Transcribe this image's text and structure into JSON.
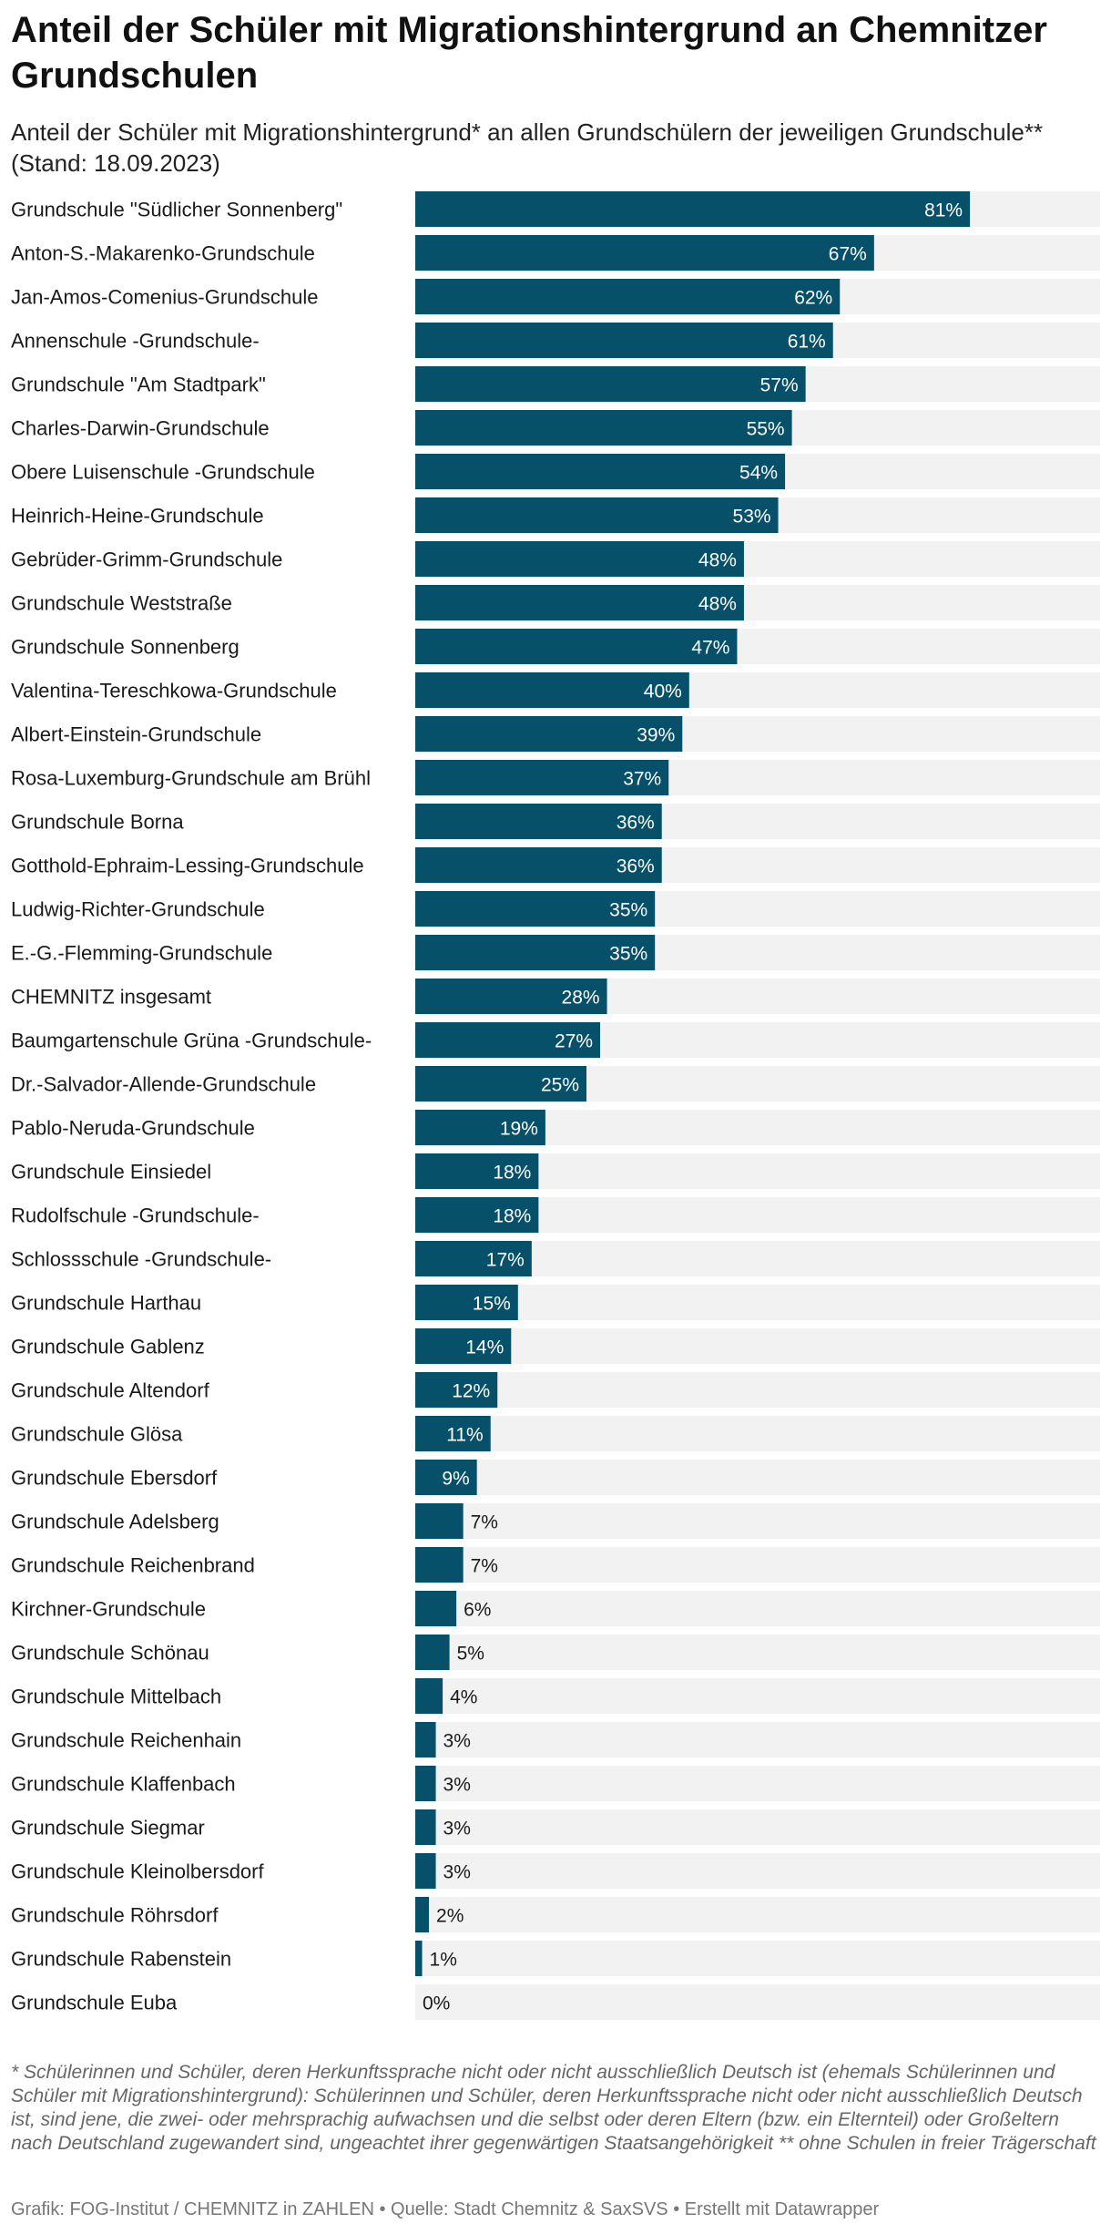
{
  "header": {
    "title": "Anteil der Schüler mit Migrationshintergrund an Chemnitzer Grundschulen",
    "subtitle": "Anteil der Schüler mit Migrationshintergrund* an allen Grundschülern der jeweiligen Grundschule** (Stand: 18.09.2023)"
  },
  "footer": {
    "note": "* Schülerinnen und Schüler, deren Herkunftssprache nicht oder nicht ausschließlich Deutsch ist (ehemals Schülerinnen und Schüler mit Migrationshintergrund): Schülerinnen und Schüler, deren Herkunftssprache nicht oder nicht ausschließlich Deutsch ist, sind jene, die zwei- oder mehrsprachig aufwachsen und die selbst oder deren Eltern (bzw. ein Elternteil) oder Großeltern nach Deutschland zugewandert sind, ungeachtet ihrer gegenwärtigen Staatsangehörigkeit ** ohne Schulen in freier Trägerschaft",
    "credit": "Grafik: FOG-Institut / CHEMNITZ in ZAHLEN • Quelle: Stadt Chemnitz & SaxSVS • Erstellt mit Datawrapper"
  },
  "colors": {
    "bar": "#07506a",
    "track": "#f2f2f2"
  },
  "chart_data": {
    "type": "bar",
    "orientation": "horizontal",
    "value_suffix": "%",
    "xlim": [
      0,
      100
    ],
    "categories": [
      "Grundschule \"Südlicher Sonnenberg\"",
      "Anton-S.-Makarenko-Grundschule",
      "Jan-Amos-Comenius-Grundschule",
      "Annenschule -Grundschule-",
      "Grundschule \"Am Stadtpark\"",
      "Charles-Darwin-Grundschule",
      "Obere Luisenschule -Grundschule",
      "Heinrich-Heine-Grundschule",
      "Gebrüder-Grimm-Grundschule",
      "Grundschule Weststraße",
      "Grundschule Sonnenberg",
      "Valentina-Tereschkowa-Grundschule",
      "Albert-Einstein-Grundschule",
      "Rosa-Luxemburg-Grundschule am Brühl",
      "Grundschule Borna",
      "Gotthold-Ephraim-Lessing-Grundschule",
      "Ludwig-Richter-Grundschule",
      "E.-G.-Flemming-Grundschule",
      "CHEMNITZ insgesamt",
      "Baumgartenschule Grüna -Grundschule-",
      "Dr.-Salvador-Allende-Grundschule",
      "Pablo-Neruda-Grundschule",
      "Grundschule Einsiedel",
      "Rudolfschule -Grundschule-",
      "Schlossschule -Grundschule-",
      "Grundschule Harthau",
      "Grundschule Gablenz",
      "Grundschule Altendorf",
      "Grundschule Glösa",
      "Grundschule Ebersdorf",
      "Grundschule Adelsberg",
      "Grundschule Reichenbrand",
      "Kirchner-Grundschule",
      "Grundschule Schönau",
      "Grundschule Mittelbach",
      "Grundschule Reichenhain",
      "Grundschule Klaffenbach",
      "Grundschule Siegmar",
      "Grundschule Kleinolbersdorf",
      "Grundschule Röhrsdorf",
      "Grundschule Rabenstein",
      "Grundschule Euba"
    ],
    "values": [
      81,
      67,
      62,
      61,
      57,
      55,
      54,
      53,
      48,
      48,
      47,
      40,
      39,
      37,
      36,
      36,
      35,
      35,
      28,
      27,
      25,
      19,
      18,
      18,
      17,
      15,
      14,
      12,
      11,
      9,
      7,
      7,
      6,
      5,
      4,
      3,
      3,
      3,
      3,
      2,
      1,
      0
    ]
  }
}
